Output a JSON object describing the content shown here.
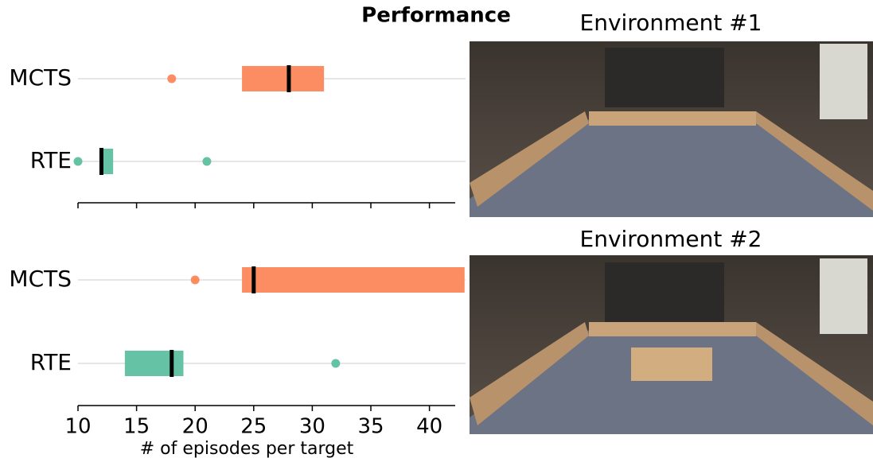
{
  "chart_data": [
    {
      "type": "box",
      "title": "Performance",
      "categories": [
        "MCTS",
        "RTE"
      ],
      "boxes": [
        {
          "q1": 24,
          "median": 28,
          "q3": 31,
          "outliers": [
            18
          ],
          "color": "#fc8d62"
        },
        {
          "q1": 12,
          "median": 12,
          "q3": 13,
          "outliers": [
            10,
            21
          ],
          "color": "#66c2a5"
        }
      ],
      "xlim": [
        10,
        42.2
      ],
      "xticks": [
        10,
        15,
        20,
        25,
        30,
        35,
        40
      ],
      "tick_labels": false,
      "grid": true
    },
    {
      "type": "box",
      "categories": [
        "MCTS",
        "RTE"
      ],
      "boxes": [
        {
          "q1": 24,
          "median": 25,
          "q3": 43,
          "outliers": [
            20
          ],
          "color": "#fc8d62"
        },
        {
          "q1": 14,
          "median": 18,
          "q3": 19,
          "outliers": [
            32
          ],
          "color": "#66c2a5"
        }
      ],
      "xlim": [
        10,
        42.2
      ],
      "xticks": [
        10,
        15,
        20,
        25,
        30,
        35,
        40
      ],
      "tick_labels": true,
      "grid": true,
      "xlabel": "# of episodes per target"
    }
  ],
  "images": [
    {
      "title": "Environment #1"
    },
    {
      "title": "Environment #2"
    }
  ]
}
